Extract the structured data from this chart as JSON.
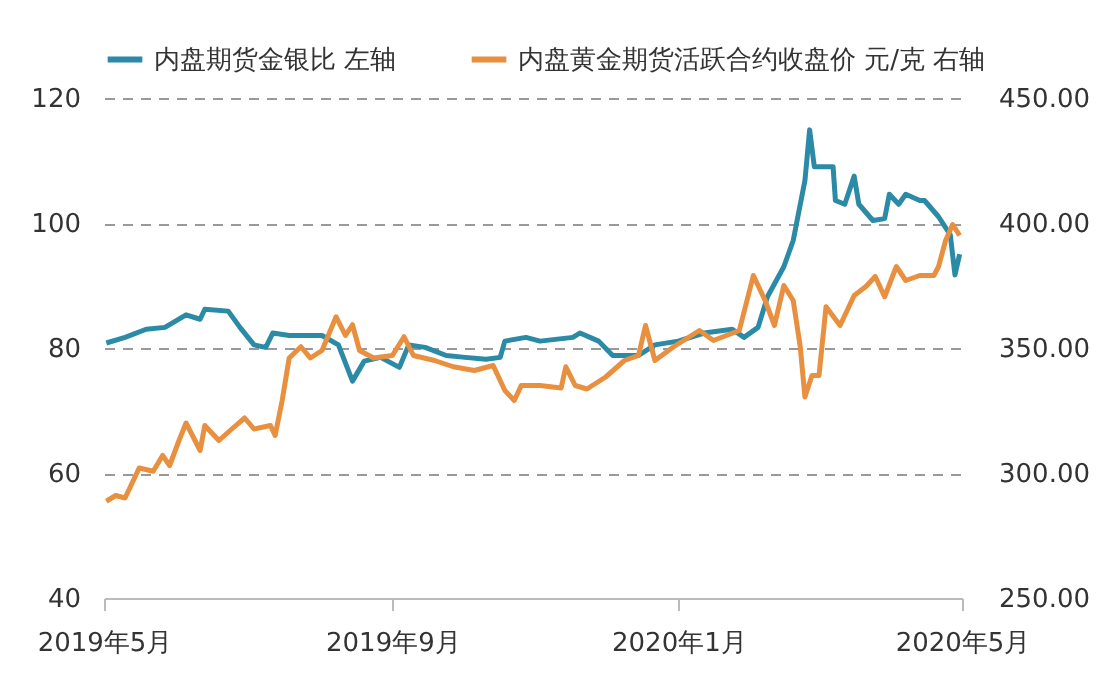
{
  "chart_data": {
    "type": "line",
    "xlim": [
      "2019-05-01",
      "2020-05-01"
    ],
    "xticks": [
      {
        "value": "2019-05-01",
        "label": "2019年5月"
      },
      {
        "value": "2019-09-01",
        "label": "2019年9月"
      },
      {
        "value": "2020-01-01",
        "label": "2020年1月"
      },
      {
        "value": "2020-05-01",
        "label": "2020年5月"
      }
    ],
    "ylim": [
      40,
      120
    ],
    "yticks": [
      40,
      60,
      80,
      100,
      120
    ],
    "y2lim": [
      250,
      450
    ],
    "y2ticks": [
      {
        "value": 250,
        "label": "250.00"
      },
      {
        "value": 300,
        "label": "300.00"
      },
      {
        "value": 350,
        "label": "350.00"
      },
      {
        "value": 400,
        "label": "400.00"
      },
      {
        "value": 450,
        "label": "450.00"
      }
    ],
    "grid": "y",
    "legend": "top",
    "line_style": "solid",
    "series": [
      {
        "name": "内盘期货金银比 左轴",
        "color": "#2b8aa6",
        "x": [
          "2019-05-02",
          "2019-05-10",
          "2019-05-19",
          "2019-05-27",
          "2019-06-05",
          "2019-06-11",
          "2019-06-13",
          "2019-06-23",
          "2019-06-28",
          "2019-07-04",
          "2019-07-09",
          "2019-07-12",
          "2019-07-19",
          "2019-07-26",
          "2019-08-02",
          "2019-08-09",
          "2019-08-15",
          "2019-08-20",
          "2019-08-27",
          "2019-09-04",
          "2019-09-08",
          "2019-09-15",
          "2019-09-24",
          "2019-10-02",
          "2019-10-11",
          "2019-10-17",
          "2019-10-19",
          "2019-10-28",
          "2019-11-03",
          "2019-11-17",
          "2019-11-20",
          "2019-11-28",
          "2019-12-04",
          "2019-12-15",
          "2019-12-22",
          "2020-01-01",
          "2020-01-12",
          "2020-01-24",
          "2020-01-29",
          "2020-02-04",
          "2020-02-08",
          "2020-02-15",
          "2020-02-19",
          "2020-02-24",
          "2020-02-26",
          "2020-02-28",
          "2020-03-07",
          "2020-03-08",
          "2020-03-12",
          "2020-03-16",
          "2020-03-18",
          "2020-03-24",
          "2020-03-29",
          "2020-03-31",
          "2020-04-04",
          "2020-04-07",
          "2020-04-13",
          "2020-04-15",
          "2020-04-21",
          "2020-04-26",
          "2020-04-28",
          "2020-04-30"
        ],
        "values": [
          80.8,
          81.7,
          83,
          83.3,
          85.3,
          84.6,
          86.2,
          85.9,
          83.3,
          80.5,
          80.1,
          82.4,
          82,
          82,
          82,
          80.5,
          74.7,
          77.9,
          78.5,
          76.9,
          80.5,
          80.1,
          78.8,
          78.5,
          78.2,
          78.5,
          81.1,
          81.7,
          81.1,
          81.7,
          82.4,
          81.1,
          78.8,
          78.8,
          80.5,
          81.1,
          82.4,
          83,
          81.7,
          83.3,
          88.2,
          93,
          97.2,
          106.8,
          114.9,
          109,
          109,
          103.6,
          103,
          107.5,
          103,
          100.4,
          100.7,
          104.6,
          103,
          104.6,
          103.6,
          103.6,
          101,
          98.1,
          91.7,
          95
        ]
      },
      {
        "name": "内盘黄金期货活跃合约收盘价 元/克 右轴",
        "color": "#e8903f",
        "axis": "y2",
        "x": [
          "2019-05-02",
          "2019-05-06",
          "2019-05-10",
          "2019-05-16",
          "2019-05-22",
          "2019-05-26",
          "2019-05-29",
          "2019-06-02",
          "2019-06-05",
          "2019-06-11",
          "2019-06-13",
          "2019-06-19",
          "2019-06-25",
          "2019-06-30",
          "2019-07-04",
          "2019-07-11",
          "2019-07-13",
          "2019-07-16",
          "2019-07-19",
          "2019-07-24",
          "2019-07-28",
          "2019-08-02",
          "2019-08-08",
          "2019-08-12",
          "2019-08-15",
          "2019-08-18",
          "2019-08-24",
          "2019-09-01",
          "2019-09-06",
          "2019-09-10",
          "2019-09-19",
          "2019-09-27",
          "2019-10-06",
          "2019-10-14",
          "2019-10-19",
          "2019-10-23",
          "2019-10-26",
          "2019-11-03",
          "2019-11-12",
          "2019-11-14",
          "2019-11-18",
          "2019-11-23",
          "2019-12-01",
          "2019-12-09",
          "2019-12-15",
          "2019-12-18",
          "2019-12-22",
          "2019-12-30",
          "2020-01-10",
          "2020-01-16",
          "2020-01-27",
          "2020-02-02",
          "2020-02-07",
          "2020-02-11",
          "2020-02-15",
          "2020-02-19",
          "2020-02-22",
          "2020-02-24",
          "2020-02-27",
          "2020-03-01",
          "2020-03-04",
          "2020-03-10",
          "2020-03-16",
          "2020-03-21",
          "2020-03-25",
          "2020-03-29",
          "2020-04-03",
          "2020-04-07",
          "2020-04-13",
          "2020-04-19",
          "2020-04-21",
          "2020-04-24",
          "2020-04-27",
          "2020-04-30"
        ],
        "values": [
          288.7,
          291,
          290,
          302,
          300.7,
          307,
          303,
          313,
          320,
          309,
          319,
          313,
          318,
          322,
          317.6,
          319,
          315,
          329,
          346,
          350.5,
          346,
          349,
          362.5,
          355,
          359.3,
          349,
          346,
          347,
          354.5,
          347,
          345,
          342.5,
          341,
          343,
          333,
          329,
          335,
          335,
          334,
          342.5,
          335,
          333.6,
          338.4,
          345,
          347,
          359,
          345,
          350.5,
          357,
          353,
          357,
          379,
          369,
          359,
          375,
          369,
          350.5,
          330.4,
          339,
          339,
          366.5,
          359,
          371,
          374.6,
          378.6,
          370.5,
          382.6,
          377,
          379,
          379,
          382.6,
          393,
          399.4,
          395
        ]
      }
    ]
  }
}
